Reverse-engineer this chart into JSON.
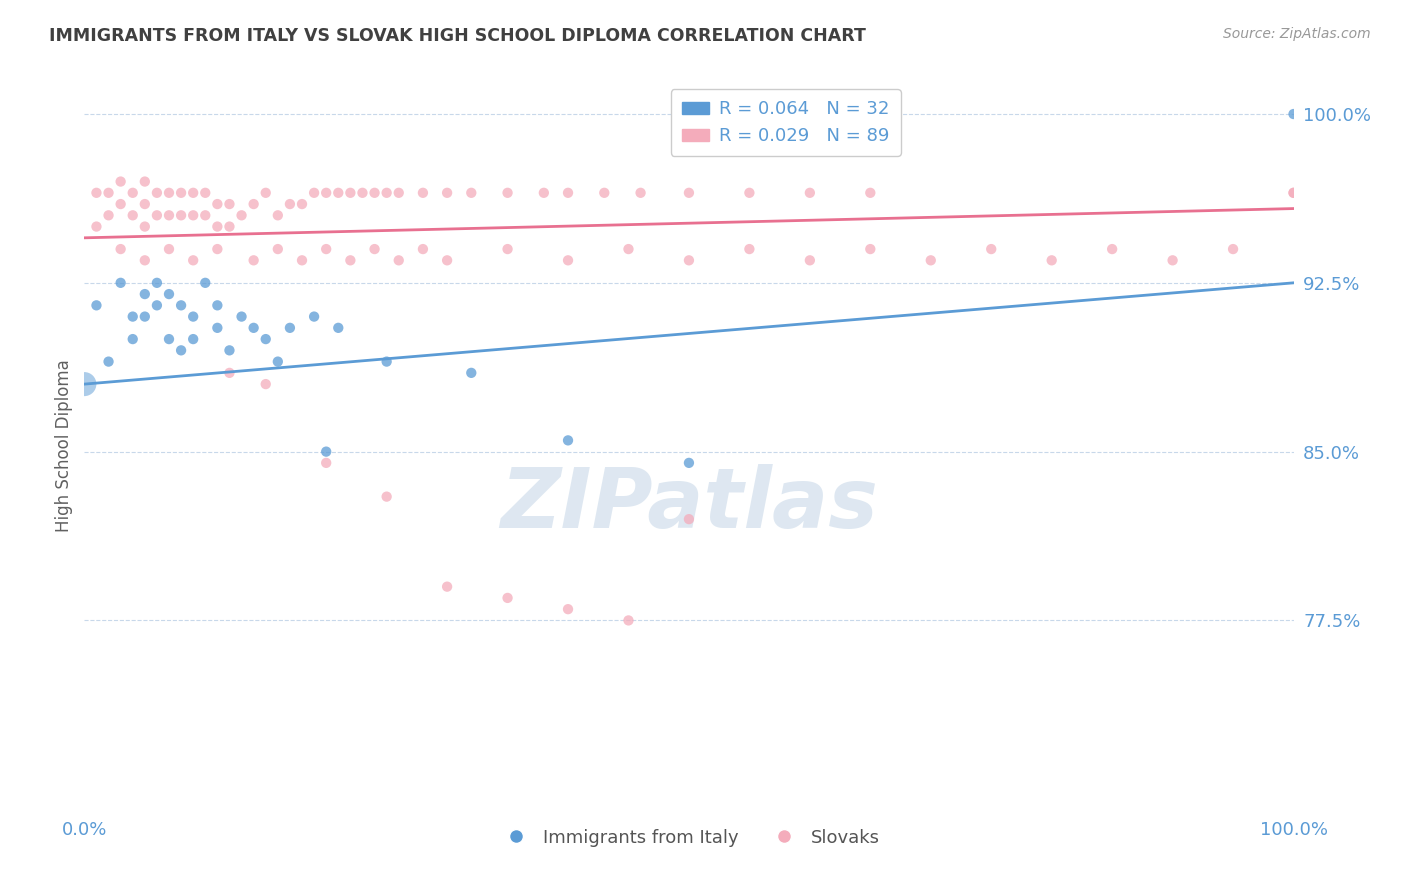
{
  "title": "IMMIGRANTS FROM ITALY VS SLOVAK HIGH SCHOOL DIPLOMA CORRELATION CHART",
  "source_text": "Source: ZipAtlas.com",
  "ylabel": "High School Diploma",
  "x_min": 0.0,
  "x_max": 100.0,
  "y_min": 69.0,
  "y_max": 101.5,
  "yticks": [
    77.5,
    85.0,
    92.5,
    100.0
  ],
  "ytick_labels": [
    "77.5%",
    "85.0%",
    "92.5%",
    "100.0%"
  ],
  "xtick_labels": [
    "0.0%",
    "100.0%"
  ],
  "legend_blue_label": "R = 0.064   N = 32",
  "legend_pink_label": "R = 0.029   N = 89",
  "bottom_legend_blue": "Immigrants from Italy",
  "bottom_legend_pink": "Slovaks",
  "blue_color": "#5B9BD5",
  "pink_color": "#F4ACBB",
  "title_color": "#404040",
  "axis_label_color": "#5B9BD5",
  "watermark_color": "#C8D8E8",
  "background_color": "#FFFFFF",
  "blue_scatter_x": [
    1,
    2,
    3,
    4,
    4,
    5,
    5,
    6,
    6,
    7,
    7,
    8,
    8,
    9,
    9,
    10,
    11,
    11,
    12,
    13,
    14,
    15,
    16,
    17,
    19,
    20,
    21,
    25,
    32,
    40,
    50,
    100
  ],
  "blue_scatter_y": [
    91.5,
    89.0,
    92.5,
    91.0,
    90.0,
    92.0,
    91.0,
    92.5,
    91.5,
    92.0,
    90.0,
    91.5,
    89.5,
    91.0,
    90.0,
    92.5,
    91.5,
    90.5,
    89.5,
    91.0,
    90.5,
    90.0,
    89.0,
    90.5,
    91.0,
    85.0,
    90.5,
    89.0,
    88.5,
    85.5,
    84.5,
    100.0
  ],
  "blue_scatter_sizes": [
    50,
    50,
    50,
    50,
    50,
    50,
    50,
    50,
    50,
    50,
    50,
    50,
    50,
    50,
    50,
    50,
    50,
    50,
    50,
    50,
    50,
    50,
    50,
    50,
    50,
    50,
    50,
    50,
    50,
    50,
    50,
    80
  ],
  "pink_scatter_x": [
    1,
    1,
    2,
    2,
    3,
    3,
    4,
    4,
    5,
    5,
    5,
    6,
    6,
    7,
    7,
    8,
    8,
    9,
    9,
    10,
    10,
    11,
    11,
    12,
    12,
    13,
    14,
    15,
    16,
    17,
    18,
    19,
    20,
    21,
    22,
    23,
    24,
    25,
    26,
    28,
    30,
    32,
    35,
    38,
    40,
    43,
    46,
    50,
    55,
    60,
    65,
    100,
    3,
    5,
    7,
    9,
    11,
    14,
    16,
    18,
    20,
    22,
    24,
    26,
    28,
    30,
    35,
    40,
    45,
    50,
    55,
    60,
    65,
    70,
    75,
    80,
    85,
    90,
    95,
    100,
    12,
    15,
    20,
    25,
    30,
    35,
    40,
    45,
    50
  ],
  "pink_scatter_y": [
    96.5,
    95.0,
    96.5,
    95.5,
    97.0,
    96.0,
    96.5,
    95.5,
    97.0,
    96.0,
    95.0,
    96.5,
    95.5,
    96.5,
    95.5,
    96.5,
    95.5,
    96.5,
    95.5,
    96.5,
    95.5,
    96.0,
    95.0,
    96.0,
    95.0,
    95.5,
    96.0,
    96.5,
    95.5,
    96.0,
    96.0,
    96.5,
    96.5,
    96.5,
    96.5,
    96.5,
    96.5,
    96.5,
    96.5,
    96.5,
    96.5,
    96.5,
    96.5,
    96.5,
    96.5,
    96.5,
    96.5,
    96.5,
    96.5,
    96.5,
    96.5,
    96.5,
    94.0,
    93.5,
    94.0,
    93.5,
    94.0,
    93.5,
    94.0,
    93.5,
    94.0,
    93.5,
    94.0,
    93.5,
    94.0,
    93.5,
    94.0,
    93.5,
    94.0,
    93.5,
    94.0,
    93.5,
    94.0,
    93.5,
    94.0,
    93.5,
    94.0,
    93.5,
    94.0,
    96.5,
    88.5,
    88.0,
    84.5,
    83.0,
    79.0,
    78.5,
    78.0,
    77.5,
    82.0
  ],
  "pink_scatter_sizes": [
    50,
    50,
    50,
    50,
    50,
    50,
    50,
    50,
    50,
    50,
    50,
    50,
    50,
    50,
    50,
    50,
    50,
    50,
    50,
    50,
    50,
    50,
    50,
    50,
    50,
    50,
    50,
    50,
    50,
    50,
    50,
    50,
    50,
    50,
    50,
    50,
    50,
    50,
    50,
    50,
    50,
    50,
    50,
    50,
    50,
    50,
    50,
    50,
    50,
    50,
    50,
    50,
    50,
    50,
    50,
    50,
    50,
    50,
    50,
    50,
    50,
    50,
    50,
    50,
    50,
    50,
    50,
    50,
    50,
    50,
    50,
    50,
    50,
    50,
    50,
    50,
    50,
    50,
    50,
    50,
    50,
    50,
    50,
    50,
    50,
    50,
    50,
    50,
    50
  ],
  "blue_trend_x": [
    0,
    100
  ],
  "blue_trend_y": [
    88.0,
    92.5
  ],
  "pink_trend_x": [
    0,
    100
  ],
  "pink_trend_y": [
    94.5,
    95.8
  ],
  "big_blue_x": 0,
  "big_blue_y": 88.0,
  "big_blue_size": 300
}
